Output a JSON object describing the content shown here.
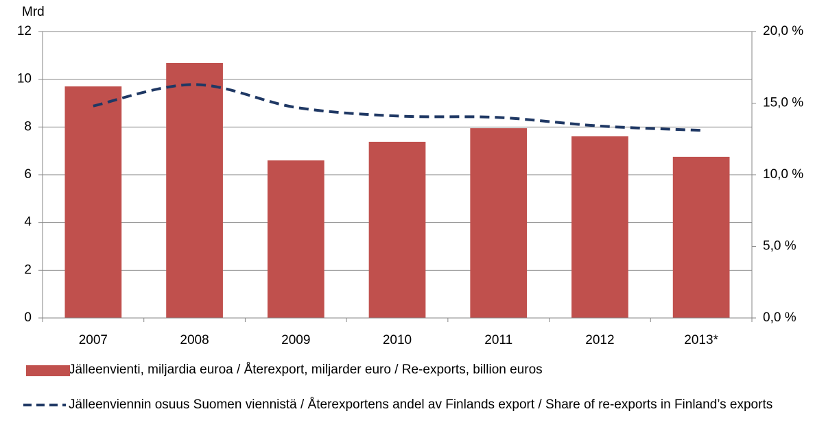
{
  "chart_data": {
    "type": "bar-line",
    "y_label": "Mrd",
    "categories": [
      "2007",
      "2008",
      "2009",
      "2010",
      "2011",
      "2012",
      "2013*"
    ],
    "series": [
      {
        "name": "Jälleenvienti, miljardia euroa / Återexport, miljarder euro / Re-exports, billion euros",
        "type": "bar",
        "color": "#c0504d",
        "values": [
          9.7,
          10.68,
          6.6,
          7.38,
          7.95,
          7.61,
          6.75
        ]
      },
      {
        "name": "Jälleenviennin osuus Suomen viennistä / Återexportens andel av Finlands export / Share of re-exports in Finland’s exports",
        "type": "line",
        "axis": "y2",
        "dashed": true,
        "color": "#1f3864",
        "values": [
          14.8,
          16.3,
          14.7,
          14.1,
          14.0,
          13.4,
          13.1
        ]
      }
    ],
    "ylim": [
      0,
      12
    ],
    "yticks": [
      0,
      2,
      4,
      6,
      8,
      10,
      12
    ],
    "y2lim": [
      0,
      20
    ],
    "y2ticks": [
      {
        "value": 0,
        "label": "0,0 %"
      },
      {
        "value": 5,
        "label": "5,0 %"
      },
      {
        "value": 10,
        "label": "10,0 %"
      },
      {
        "value": 15,
        "label": "15,0 %"
      },
      {
        "value": 20,
        "label": "20,0 %"
      }
    ],
    "grid": true
  }
}
